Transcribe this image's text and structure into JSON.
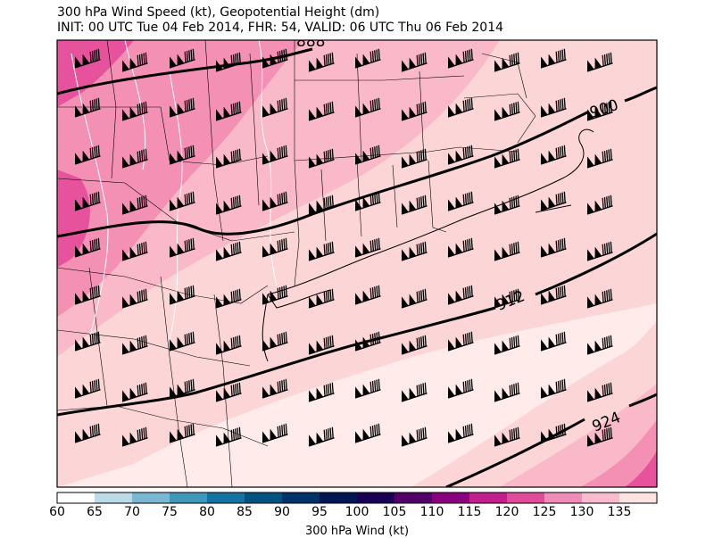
{
  "header": {
    "title_line1": "300 hPa Wind Speed (kt), Geopotential Height (dm)",
    "title_line2": "INIT: 00 UTC Tue 04 Feb 2014, FHR: 54, VALID: 06 UTC Thu 06 Feb 2014"
  },
  "contours": {
    "labels": [
      "888",
      "900",
      "912",
      "924"
    ]
  },
  "colorbar": {
    "label": "300 hPa Wind (kt)",
    "ticks": [
      "60",
      "65",
      "70",
      "75",
      "80",
      "85",
      "90",
      "95",
      "100",
      "105",
      "110",
      "115",
      "120",
      "125",
      "130",
      "135"
    ],
    "colors": [
      "#ffffff",
      "#bcdbe9",
      "#7ab8d2",
      "#3f97bc",
      "#1573a3",
      "#00527f",
      "#00336a",
      "#001653",
      "#190052",
      "#520067",
      "#8a007f",
      "#c21e8e",
      "#e04c99",
      "#f08cb8",
      "#fbbbcf",
      "#ffe3e3"
    ]
  },
  "map": {
    "shading_colors": {
      "light": "#ffecea",
      "pale": "#fcd5d7",
      "medium": "#fab9c8",
      "pink": "#f490b4",
      "strong": "#e6529c"
    },
    "barb_icon": "wind-barb-icon"
  }
}
